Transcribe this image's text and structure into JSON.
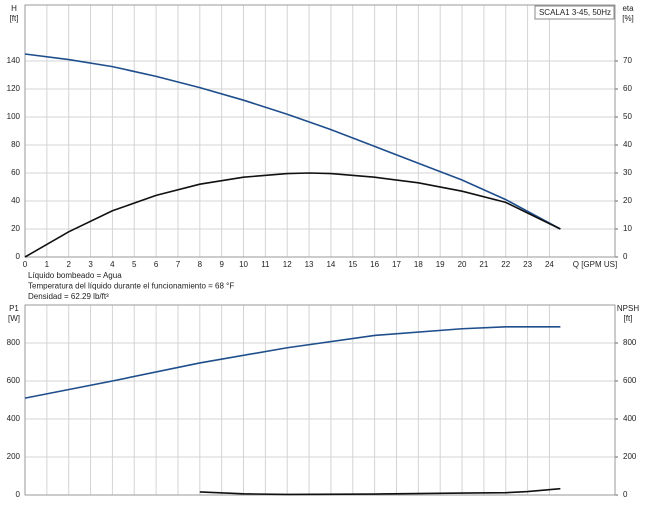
{
  "chart_data": [
    {
      "type": "line",
      "legend_text": "SCALA1 3-45, 50Hz",
      "ylabel_lines": [
        "H",
        "[ft]"
      ],
      "y2label_lines": [
        "eta",
        "[%]"
      ],
      "xlabel": "Q [GPM US]",
      "notes": [
        "Líquido bombeado = Agua",
        "Temperatura del líquido durante el funcionamiento = 68 °F",
        "Densidad = 62.29 lb/ft³"
      ],
      "xlim": [
        0,
        27
      ],
      "xticks": [
        0,
        1,
        2,
        3,
        4,
        5,
        6,
        7,
        8,
        9,
        10,
        11,
        12,
        13,
        14,
        15,
        16,
        17,
        18,
        19,
        20,
        21,
        22,
        23,
        24
      ],
      "show_xtick_labels": true,
      "ylim": [
        0,
        180
      ],
      "yticks": [
        0,
        20,
        40,
        60,
        80,
        100,
        120,
        140
      ],
      "y2lim": [
        0,
        90
      ],
      "y2ticks": [
        0,
        10,
        20,
        30,
        40,
        50,
        60,
        70
      ],
      "grid": true,
      "series": [
        {
          "color": "#1f4e8c",
          "axis": "y",
          "x": [
            0,
            2,
            4,
            6,
            8,
            10,
            12,
            14,
            16,
            18,
            20,
            22,
            24.5
          ],
          "values": [
            145,
            141,
            136,
            129,
            121,
            112,
            102,
            91,
            79,
            67,
            55,
            41,
            20
          ]
        },
        {
          "color": "#111111",
          "axis": "y2",
          "x": [
            0,
            2,
            4,
            6,
            8,
            10,
            12,
            13,
            14,
            16,
            18,
            20,
            22,
            24.5
          ],
          "values": [
            0,
            9,
            16.5,
            22,
            26,
            28.5,
            29.8,
            30,
            29.8,
            28.5,
            26.5,
            23.5,
            19.5,
            10
          ]
        }
      ]
    },
    {
      "type": "line",
      "ylabel_lines": [
        "P1",
        "[W]"
      ],
      "y2label_lines": [
        "NPSH",
        "[ft]"
      ],
      "xlim": [
        0,
        27
      ],
      "xticks": [
        0,
        1,
        2,
        3,
        4,
        5,
        6,
        7,
        8,
        9,
        10,
        11,
        12,
        13,
        14,
        15,
        16,
        17,
        18,
        19,
        20,
        21,
        22,
        23,
        24
      ],
      "show_xtick_labels": false,
      "ylim": [
        0,
        1000
      ],
      "yticks": [
        0,
        200,
        400,
        600,
        800
      ],
      "y2lim": [
        0,
        1000
      ],
      "y2ticks": [
        0,
        200,
        400,
        600,
        800
      ],
      "grid": true,
      "series": [
        {
          "color": "#1f4e8c",
          "axis": "y",
          "x": [
            0,
            4,
            8,
            12,
            16,
            20,
            22,
            24.5
          ],
          "values": [
            510,
            600,
            695,
            775,
            840,
            875,
            885,
            885
          ]
        },
        {
          "color": "#111111",
          "axis": "y2",
          "x": [
            8,
            10,
            12,
            16,
            20,
            22,
            23,
            24.5
          ],
          "values": [
            16,
            6,
            3,
            5,
            10,
            12,
            18,
            33
          ]
        }
      ]
    }
  ]
}
